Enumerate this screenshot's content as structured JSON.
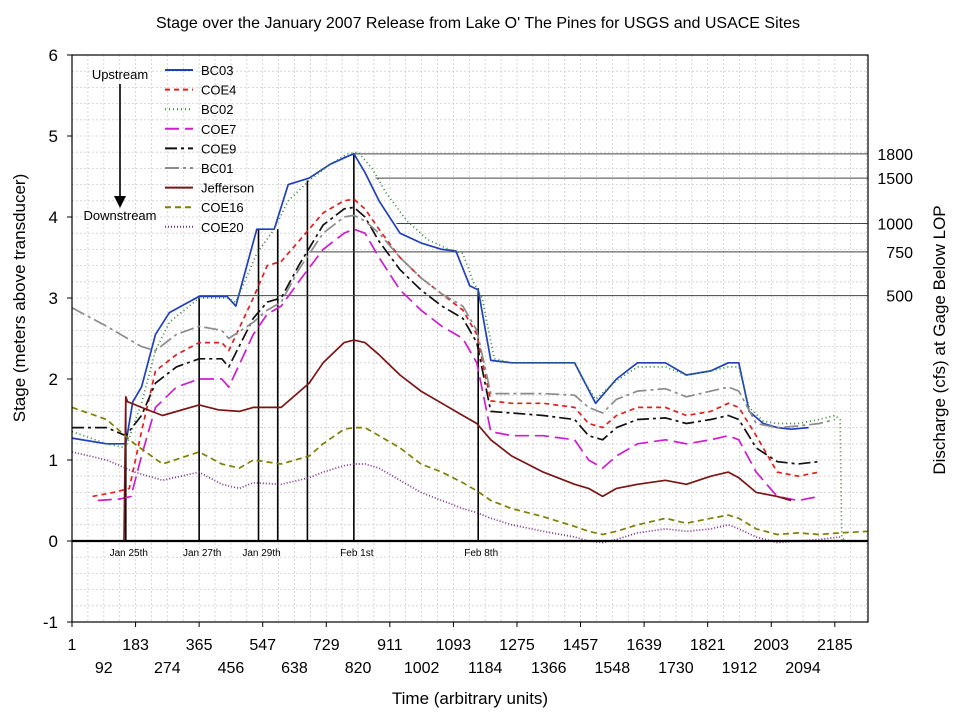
{
  "chart_data": {
    "type": "line",
    "title": "Stage over the January 2007 Release from Lake O' The Pines for USGS and USACE Sites",
    "xlabel": "Time (arbitrary units)",
    "ylabel": "Stage (meters above transducer)",
    "y2label": "Discharge (cfs) at Gage Below LOP",
    "xlim": [
      1,
      2280
    ],
    "ylim": [
      -1,
      6
    ],
    "grid": true,
    "legend_position": "top-left",
    "x_ticks_row1": [
      1,
      183,
      365,
      547,
      729,
      911,
      1093,
      1275,
      1457,
      1639,
      1821,
      2003,
      2185
    ],
    "x_ticks_row2": [
      92,
      274,
      456,
      638,
      820,
      1002,
      1184,
      1366,
      1548,
      1730,
      1912,
      2094
    ],
    "y_ticks": [
      -1,
      0,
      1,
      2,
      3,
      4,
      5,
      6
    ],
    "annotations": {
      "upstream": "Upstream",
      "downstream": "Downstream",
      "events": [
        {
          "x": 155,
          "label": "Jan 25th",
          "ymax": 1.78,
          "show_label": true
        },
        {
          "x": 365,
          "label": "Jan 27th",
          "ymax": 3.02,
          "show_label": true
        },
        {
          "x": 535,
          "label": "Jan 29th",
          "ymax": 3.85,
          "show_label": true
        },
        {
          "x": 590,
          "label": "",
          "ymax": 3.85,
          "show_label": false
        },
        {
          "x": 675,
          "label": "",
          "ymax": 4.45,
          "show_label": false
        },
        {
          "x": 808,
          "label": "Feb 1st",
          "ymax": 4.78,
          "show_label": true
        },
        {
          "x": 1164,
          "label": "Feb 8th",
          "ymax": 3.12,
          "show_label": true
        }
      ],
      "discharge_markers": [
        {
          "label": "1800",
          "y": 4.78,
          "x_start": 808
        },
        {
          "label": "1500",
          "y": 4.48,
          "x_start": 870
        },
        {
          "label": "1000",
          "y": 3.92,
          "x_start": 930
        },
        {
          "label": "750",
          "y": 3.57,
          "x_start": 680
        },
        {
          "label": "500",
          "y": 3.03,
          "x_start": 365
        }
      ]
    },
    "series": [
      {
        "name": "BC03",
        "color": "#1f3fbf",
        "dash": "",
        "x": [
          1,
          100,
          155,
          175,
          200,
          240,
          280,
          365,
          445,
          470,
          530,
          580,
          620,
          680,
          740,
          790,
          808,
          840,
          880,
          940,
          1000,
          1060,
          1100,
          1140,
          1164,
          1200,
          1260,
          1350,
          1440,
          1470,
          1500,
          1560,
          1620,
          1700,
          1760,
          1830,
          1880,
          1910,
          1940,
          1980,
          2020,
          2060,
          2110
        ],
        "values": [
          1.27,
          1.2,
          1.2,
          1.72,
          1.9,
          2.55,
          2.82,
          3.02,
          3.02,
          2.9,
          3.85,
          3.85,
          4.4,
          4.48,
          4.65,
          4.75,
          4.78,
          4.55,
          4.2,
          3.8,
          3.68,
          3.6,
          3.58,
          3.15,
          3.1,
          2.23,
          2.2,
          2.2,
          2.2,
          1.95,
          1.7,
          2.0,
          2.2,
          2.2,
          2.05,
          2.1,
          2.2,
          2.2,
          1.6,
          1.45,
          1.4,
          1.38,
          1.4
        ]
      },
      {
        "name": "COE4",
        "color": "#e02020",
        "dash": "5,4",
        "x": [
          60,
          120,
          165,
          200,
          240,
          300,
          365,
          430,
          450,
          520,
          560,
          600,
          650,
          720,
          780,
          808,
          840,
          880,
          940,
          1000,
          1060,
          1120,
          1160,
          1200,
          1260,
          1350,
          1440,
          1480,
          1520,
          1560,
          1620,
          1700,
          1760,
          1830,
          1880,
          1910,
          1960,
          2020,
          2080,
          2140
        ],
        "values": [
          0.55,
          0.6,
          0.65,
          1.35,
          2.1,
          2.3,
          2.45,
          2.45,
          2.35,
          3.0,
          3.4,
          3.45,
          3.7,
          4.05,
          4.2,
          4.22,
          4.1,
          3.85,
          3.5,
          3.25,
          3.05,
          2.85,
          2.55,
          1.73,
          1.7,
          1.7,
          1.65,
          1.45,
          1.4,
          1.55,
          1.65,
          1.65,
          1.55,
          1.6,
          1.7,
          1.65,
          1.3,
          0.85,
          0.8,
          0.85
        ]
      },
      {
        "name": "BC02",
        "color": "#2e8b2e",
        "dash": "1,3",
        "x": [
          1,
          100,
          155,
          175,
          200,
          240,
          280,
          365,
          445,
          470,
          530,
          580,
          620,
          680,
          740,
          790,
          820,
          860,
          900,
          960,
          1020,
          1080,
          1120,
          1150,
          1175,
          1210,
          1260,
          1350,
          1440,
          1470,
          1500,
          1560,
          1620,
          1700,
          1760,
          1830,
          1880,
          1910,
          1940,
          1980,
          2020,
          2080,
          2140,
          2185,
          2200,
          2205,
          2215
        ],
        "values": [
          1.35,
          1.2,
          1.15,
          1.4,
          1.7,
          2.35,
          2.7,
          3.0,
          3.0,
          2.95,
          3.55,
          3.85,
          4.2,
          4.45,
          4.65,
          4.78,
          4.8,
          4.6,
          4.3,
          3.95,
          3.72,
          3.6,
          3.55,
          3.2,
          3.0,
          2.25,
          2.2,
          2.2,
          2.2,
          1.95,
          1.75,
          1.98,
          2.15,
          2.15,
          2.05,
          2.1,
          2.15,
          2.15,
          1.65,
          1.48,
          1.45,
          1.45,
          1.5,
          1.55,
          1.5,
          0.0,
          0.05
        ]
      },
      {
        "name": "COE7",
        "color": "#d01cd0",
        "dash": "14,6",
        "x": [
          75,
          140,
          170,
          200,
          240,
          300,
          365,
          430,
          450,
          520,
          560,
          600,
          650,
          720,
          780,
          808,
          840,
          880,
          940,
          1000,
          1060,
          1120,
          1160,
          1200,
          1260,
          1350,
          1440,
          1480,
          1520,
          1560,
          1620,
          1700,
          1760,
          1830,
          1880,
          1910,
          1960,
          2020,
          2080,
          2140
        ],
        "values": [
          0.5,
          0.52,
          0.55,
          1.05,
          1.65,
          1.9,
          2.0,
          2.0,
          1.9,
          2.55,
          2.8,
          2.9,
          3.2,
          3.6,
          3.8,
          3.85,
          3.8,
          3.5,
          3.1,
          2.85,
          2.65,
          2.5,
          2.2,
          1.35,
          1.3,
          1.3,
          1.25,
          1.0,
          0.9,
          1.05,
          1.2,
          1.25,
          1.2,
          1.25,
          1.3,
          1.25,
          0.85,
          0.55,
          0.5,
          0.55
        ]
      },
      {
        "name": "COE9",
        "color": "#111111",
        "dash": "12,4,3,4",
        "x": [
          1,
          100,
          155,
          200,
          240,
          300,
          365,
          430,
          450,
          520,
          560,
          600,
          650,
          720,
          780,
          808,
          840,
          880,
          940,
          1000,
          1060,
          1120,
          1160,
          1200,
          1260,
          1350,
          1440,
          1480,
          1520,
          1560,
          1620,
          1700,
          1760,
          1830,
          1880,
          1910,
          1960,
          2020,
          2080,
          2140
        ],
        "values": [
          1.4,
          1.4,
          1.3,
          1.55,
          1.95,
          2.15,
          2.25,
          2.25,
          2.15,
          2.75,
          2.95,
          3.0,
          3.4,
          3.9,
          4.1,
          4.12,
          4.0,
          3.7,
          3.35,
          3.1,
          2.9,
          2.75,
          2.45,
          1.6,
          1.58,
          1.55,
          1.5,
          1.3,
          1.25,
          1.4,
          1.5,
          1.52,
          1.45,
          1.5,
          1.55,
          1.5,
          1.15,
          0.98,
          0.95,
          0.98
        ]
      },
      {
        "name": "BC01",
        "color": "#8c8c8c",
        "dash": "14,4,3,4",
        "x": [
          1,
          100,
          200,
          240,
          300,
          365,
          430,
          450,
          520,
          560,
          600,
          650,
          720,
          780,
          808,
          840,
          880,
          940,
          1000,
          1060,
          1120,
          1160,
          1200,
          1260,
          1350,
          1440,
          1480,
          1520,
          1560,
          1620,
          1700,
          1760,
          1830,
          1880,
          1910,
          1960,
          2020,
          2080,
          2140,
          2185
        ],
        "values": [
          2.88,
          2.65,
          2.4,
          2.35,
          2.55,
          2.65,
          2.6,
          2.5,
          2.7,
          2.85,
          2.95,
          3.35,
          3.8,
          4.0,
          4.02,
          3.95,
          3.8,
          3.5,
          3.25,
          3.05,
          2.9,
          2.6,
          1.82,
          1.82,
          1.82,
          1.8,
          1.65,
          1.58,
          1.75,
          1.85,
          1.88,
          1.78,
          1.85,
          1.9,
          1.85,
          1.45,
          1.4,
          1.42,
          1.45,
          1.5
        ]
      },
      {
        "name": "Jefferson",
        "color": "#7b1414",
        "dash": "",
        "x": [
          150,
          155,
          160,
          200,
          260,
          365,
          420,
          480,
          520,
          600,
          680,
          720,
          780,
          808,
          840,
          880,
          940,
          1000,
          1060,
          1120,
          1160,
          1200,
          1260,
          1350,
          1440,
          1480,
          1520,
          1560,
          1620,
          1700,
          1760,
          1830,
          1880,
          1910,
          1960,
          2020,
          2060
        ],
        "values": [
          0.0,
          1.78,
          1.72,
          1.65,
          1.55,
          1.68,
          1.62,
          1.6,
          1.65,
          1.65,
          1.95,
          2.2,
          2.45,
          2.48,
          2.45,
          2.3,
          2.05,
          1.85,
          1.7,
          1.55,
          1.45,
          1.25,
          1.05,
          0.85,
          0.7,
          0.65,
          0.55,
          0.65,
          0.7,
          0.75,
          0.7,
          0.8,
          0.85,
          0.78,
          0.6,
          0.55,
          0.5
        ]
      },
      {
        "name": "COE16",
        "color": "#7f7f00",
        "dash": "6,4",
        "x": [
          1,
          100,
          180,
          260,
          365,
          430,
          480,
          520,
          600,
          680,
          720,
          780,
          808,
          840,
          880,
          940,
          1000,
          1060,
          1120,
          1160,
          1200,
          1260,
          1350,
          1440,
          1480,
          1520,
          1560,
          1620,
          1700,
          1760,
          1830,
          1880,
          1910,
          1960,
          2020,
          2080,
          2140,
          2200,
          2280
        ],
        "values": [
          1.65,
          1.5,
          1.2,
          0.95,
          1.1,
          0.95,
          0.9,
          1.0,
          0.95,
          1.05,
          1.2,
          1.38,
          1.4,
          1.4,
          1.3,
          1.15,
          0.95,
          0.85,
          0.72,
          0.62,
          0.5,
          0.4,
          0.3,
          0.18,
          0.12,
          0.08,
          0.12,
          0.2,
          0.28,
          0.22,
          0.28,
          0.32,
          0.28,
          0.15,
          0.08,
          0.1,
          0.08,
          0.1,
          0.12
        ]
      },
      {
        "name": "COE20",
        "color": "#7b2b8b",
        "dash": "1,2",
        "x": [
          1,
          100,
          180,
          260,
          365,
          430,
          480,
          520,
          600,
          680,
          720,
          780,
          808,
          840,
          880,
          940,
          1000,
          1060,
          1120,
          1160,
          1200,
          1260,
          1350,
          1440,
          1480,
          1520,
          1560,
          1620,
          1700,
          1760,
          1830,
          1880,
          1910,
          1960,
          2020,
          2080,
          2140,
          2200
        ],
        "values": [
          1.1,
          1.0,
          0.85,
          0.75,
          0.85,
          0.7,
          0.65,
          0.72,
          0.7,
          0.78,
          0.85,
          0.93,
          0.95,
          0.95,
          0.9,
          0.75,
          0.6,
          0.5,
          0.4,
          0.35,
          0.28,
          0.2,
          0.12,
          0.05,
          0.0,
          -0.02,
          0.02,
          0.1,
          0.15,
          0.12,
          0.15,
          0.2,
          0.15,
          0.05,
          -0.02,
          0.0,
          0.02,
          0.05
        ]
      }
    ]
  }
}
